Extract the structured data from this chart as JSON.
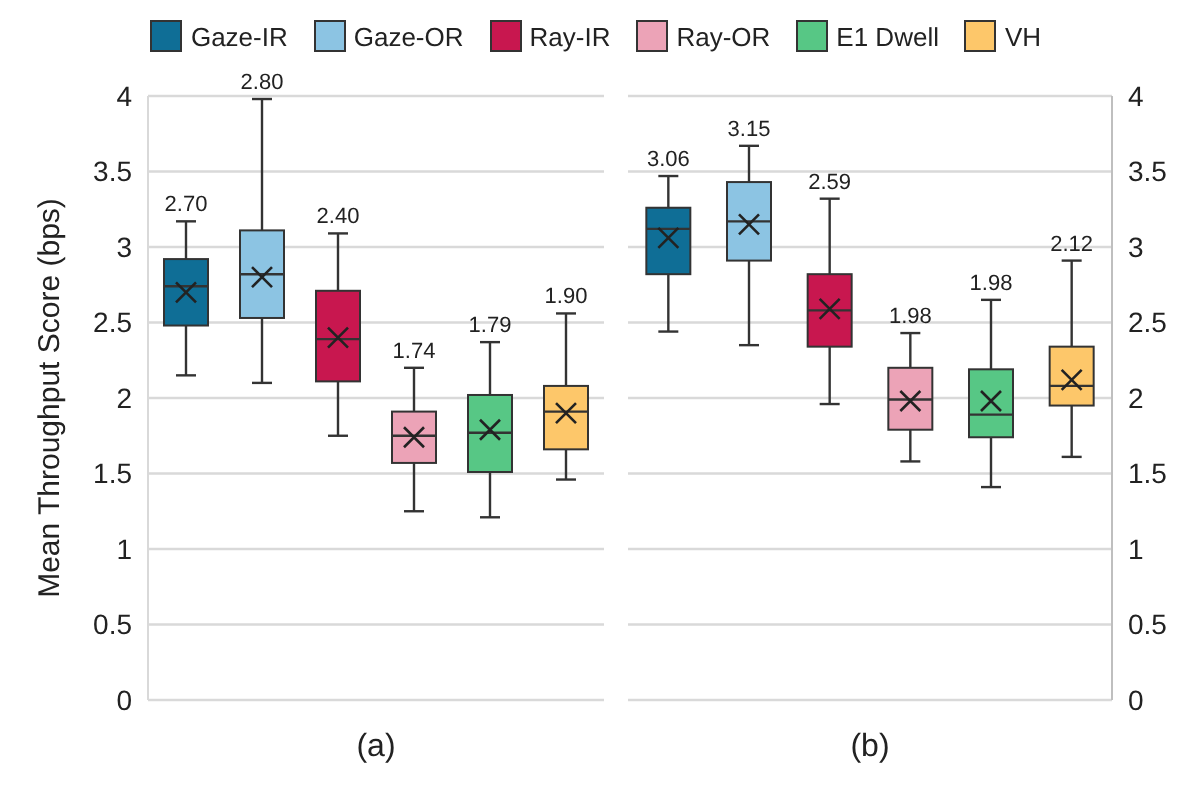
{
  "chart_data": [
    {
      "type": "box",
      "xlabel": "(a)",
      "ylabel": "Mean Throughput Score (bps)",
      "categories": [
        null,
        null,
        null,
        null,
        null,
        null
      ],
      "ylim": [
        0,
        4
      ],
      "yticks": [
        0,
        0.5,
        1,
        1.5,
        2,
        2.5,
        3,
        3.5,
        4
      ],
      "grid": "y",
      "legend": "top",
      "marker": "cross",
      "series": [
        {
          "name": "Gaze-IR",
          "color": "#0f6e96",
          "value_labels": [
            "2.70",
            null,
            null,
            null,
            null,
            null
          ],
          "boxes": [
            {
              "low": 2.15,
              "q1": 2.48,
              "median": 2.74,
              "q3": 2.92,
              "high": 3.17,
              "mean": 2.7
            },
            null,
            null,
            null,
            null,
            null
          ]
        },
        {
          "name": "Gaze-OR",
          "color": "#8cc4e3",
          "value_labels": [
            null,
            "2.80",
            null,
            null,
            null,
            null
          ],
          "boxes": [
            null,
            {
              "low": 2.1,
              "q1": 2.53,
              "median": 2.82,
              "q3": 3.11,
              "high": 3.98,
              "mean": 2.8
            },
            null,
            null,
            null,
            null
          ]
        },
        {
          "name": "Ray-IR",
          "color": "#c8174f",
          "value_labels": [
            null,
            null,
            "2.40",
            null,
            null,
            null
          ],
          "boxes": [
            null,
            null,
            {
              "low": 1.75,
              "q1": 2.11,
              "median": 2.39,
              "q3": 2.71,
              "high": 3.09,
              "mean": 2.4
            },
            null,
            null,
            null
          ]
        },
        {
          "name": "Ray-OR",
          "color": "#eca3b7",
          "value_labels": [
            null,
            null,
            null,
            "1.74",
            null,
            null
          ],
          "boxes": [
            null,
            null,
            null,
            {
              "low": 1.25,
              "q1": 1.57,
              "median": 1.75,
              "q3": 1.91,
              "high": 2.2,
              "mean": 1.74
            },
            null,
            null
          ]
        },
        {
          "name": "E1 Dwell",
          "color": "#57c785",
          "value_labels": [
            null,
            null,
            null,
            null,
            "1.79",
            null
          ],
          "boxes": [
            null,
            null,
            null,
            null,
            {
              "low": 1.21,
              "q1": 1.51,
              "median": 1.77,
              "q3": 2.02,
              "high": 2.37,
              "mean": 1.79
            },
            null
          ]
        },
        {
          "name": "VH",
          "color": "#fdc76a",
          "value_labels": [
            null,
            null,
            null,
            null,
            null,
            "1.90"
          ],
          "boxes": [
            null,
            null,
            null,
            null,
            null,
            {
              "low": 1.46,
              "q1": 1.66,
              "median": 1.91,
              "q3": 2.08,
              "high": 2.56,
              "mean": 1.9
            }
          ]
        }
      ]
    },
    {
      "type": "box",
      "xlabel": "(b)",
      "categories": [
        null,
        null,
        null,
        null,
        null,
        null
      ],
      "ylim": [
        0,
        4
      ],
      "yticks": [
        0,
        0.5,
        1,
        1.5,
        2,
        2.5,
        3,
        3.5,
        4
      ],
      "grid": "y",
      "marker": "cross",
      "series": [
        {
          "color": "#0f6e96",
          "value_labels": [
            "3.06",
            null,
            null,
            null,
            null,
            null
          ],
          "boxes": [
            {
              "low": 2.44,
              "q1": 2.82,
              "median": 3.12,
              "q3": 3.26,
              "high": 3.47,
              "mean": 3.06
            },
            null,
            null,
            null,
            null,
            null
          ]
        },
        {
          "color": "#8cc4e3",
          "value_labels": [
            null,
            "3.15",
            null,
            null,
            null,
            null
          ],
          "boxes": [
            null,
            {
              "low": 2.35,
              "q1": 2.91,
              "median": 3.17,
              "q3": 3.43,
              "high": 3.67,
              "mean": 3.15
            },
            null,
            null,
            null,
            null
          ]
        },
        {
          "color": "#c8174f",
          "value_labels": [
            null,
            null,
            "2.59",
            null,
            null,
            null
          ],
          "boxes": [
            null,
            null,
            {
              "low": 1.96,
              "q1": 2.34,
              "median": 2.58,
              "q3": 2.82,
              "high": 3.32,
              "mean": 2.59
            },
            null,
            null,
            null
          ]
        },
        {
          "color": "#eca3b7",
          "value_labels": [
            null,
            null,
            null,
            "1.98",
            null,
            null
          ],
          "boxes": [
            null,
            null,
            null,
            {
              "low": 1.58,
              "q1": 1.79,
              "median": 1.99,
              "q3": 2.2,
              "high": 2.43,
              "mean": 1.98
            },
            null,
            null
          ]
        },
        {
          "color": "#57c785",
          "value_labels": [
            null,
            null,
            null,
            null,
            "1.98",
            null
          ],
          "boxes": [
            null,
            null,
            null,
            null,
            {
              "low": 1.41,
              "q1": 1.74,
              "median": 1.89,
              "q3": 2.19,
              "high": 2.65,
              "mean": 1.98
            },
            null
          ]
        },
        {
          "color": "#fdc76a",
          "value_labels": [
            null,
            null,
            null,
            null,
            null,
            "2.12"
          ],
          "boxes": [
            null,
            null,
            null,
            null,
            null,
            {
              "low": 1.61,
              "q1": 1.95,
              "median": 2.08,
              "q3": 2.34,
              "high": 2.91,
              "mean": 2.12
            }
          ]
        }
      ]
    }
  ]
}
